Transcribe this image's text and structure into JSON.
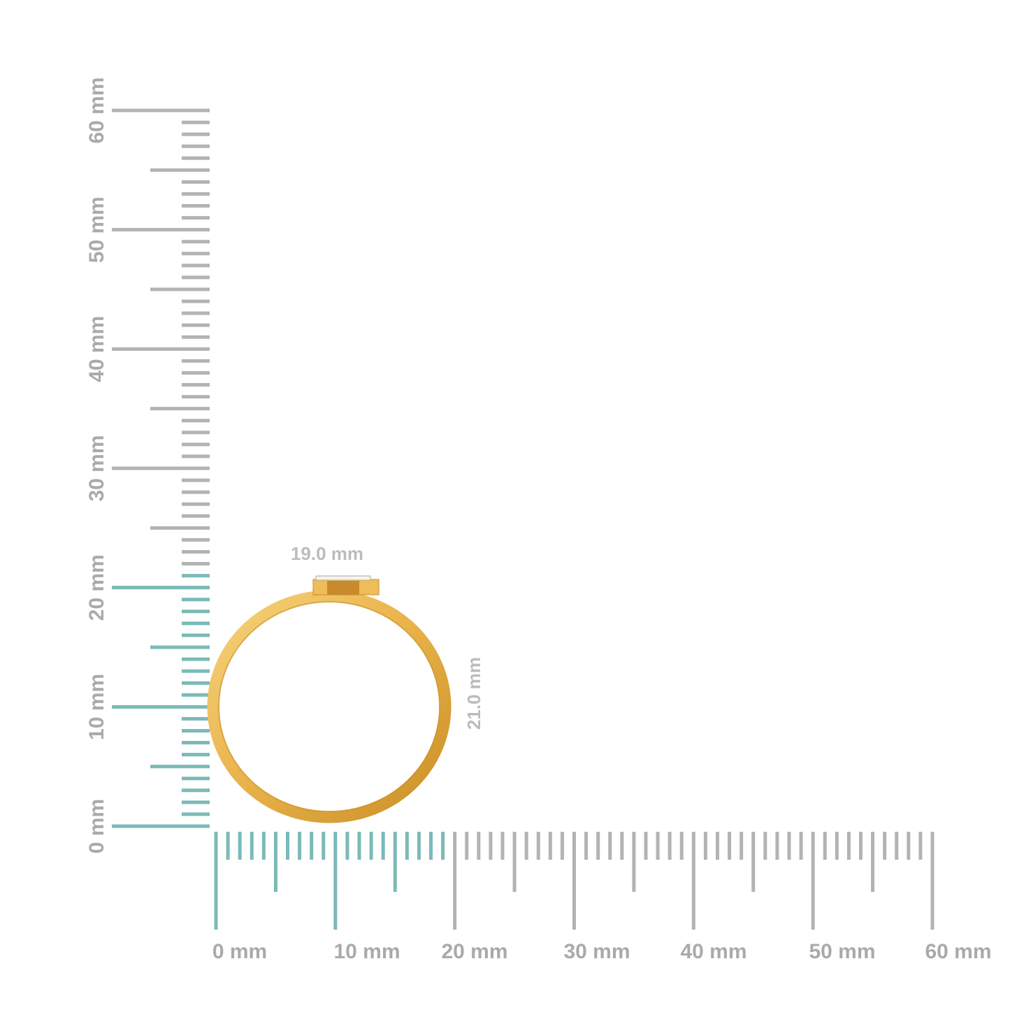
{
  "rulers": {
    "unit": "mm",
    "max": 60,
    "vertical_labels": [
      "0 mm",
      "10 mm",
      "20 mm",
      "30 mm",
      "40 mm",
      "50 mm",
      "60 mm"
    ],
    "horizontal_labels": [
      "0 mm",
      "10 mm",
      "20 mm",
      "30 mm",
      "40 mm",
      "50 mm",
      "60 mm"
    ],
    "vertical_highlight_mm": 21,
    "horizontal_highlight_mm": 19,
    "highlight_color": "#7bbab7",
    "tick_color": "#b3b3b3"
  },
  "dimensions": {
    "width_label": "19.0 mm",
    "height_label": "21.0 mm"
  },
  "product": {
    "metal_color": "#e8b24a",
    "metal_shadow": "#c98f25"
  }
}
